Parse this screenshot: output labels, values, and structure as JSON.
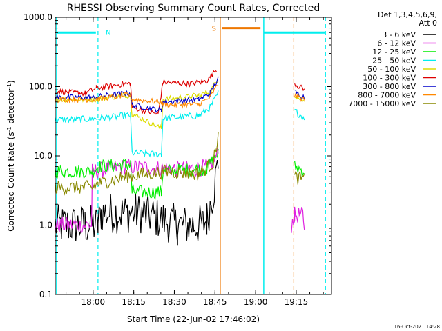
{
  "chart_data": {
    "type": "line",
    "title": "RHESSI Observing Summary Count Rates, Corrected",
    "xlabel": "Start Time (22-Jun-02 17:46:02)",
    "ylabel_main": "Corrected Count Rate (s",
    "ylabel_sup1": "-1",
    "ylabel_mid": " detector",
    "ylabel_sup2": "-1",
    "ylabel_end": ")",
    "y_scale": "log",
    "ylim": [
      0.1,
      1000
    ],
    "xlim": [
      17.767,
      19.467
    ],
    "yticks": [
      {
        "value": 0.1,
        "label": "0.1"
      },
      {
        "value": 1,
        "label": "1.0"
      },
      {
        "value": 10,
        "label": "10.0"
      },
      {
        "value": 100,
        "label": "100.0"
      },
      {
        "value": 1000,
        "label": "1000.0"
      }
    ],
    "xticks": [
      {
        "value": 18.0,
        "label": "18:00"
      },
      {
        "value": 18.25,
        "label": "18:15"
      },
      {
        "value": 18.5,
        "label": "18:30"
      },
      {
        "value": 18.75,
        "label": "18:45"
      },
      {
        "value": 19.0,
        "label": "19:00"
      },
      {
        "value": 19.25,
        "label": "19:15"
      }
    ],
    "legend": {
      "placement": "right-outside",
      "header1": "Det 1,3,4,5,6,9,",
      "header2": "Att 0",
      "entries": [
        {
          "label": "3 - 6 keV",
          "color": "#000000"
        },
        {
          "label": "6 - 12 keV",
          "color": "#e020e0"
        },
        {
          "label": "12 - 25 keV",
          "color": "#00ee00"
        },
        {
          "label": "25 - 50 keV",
          "color": "#00eeee"
        },
        {
          "label": "50 - 100 keV",
          "color": "#dddd00"
        },
        {
          "label": "100 - 300 keV",
          "color": "#dd0000"
        },
        {
          "label": "300 - 800 keV",
          "color": "#0000cc"
        },
        {
          "label": "800 - 7000 keV",
          "color": "#ff8800"
        },
        {
          "label": "7000 - 15000 keV",
          "color": "#888800"
        }
      ]
    },
    "annotations": {
      "night_label": "N",
      "saa_label": "S",
      "night_color": "#00eeee",
      "saa_color": "#ee7700",
      "night_bars": [
        [
          17.775,
          18.017
        ],
        [
          19.05,
          19.43
        ]
      ],
      "saa_bar": [
        18.795,
        19.03
      ],
      "night_bar_y": 600,
      "saa_bar_y": 700,
      "solid_lines": [
        {
          "x": 17.775,
          "color": "#00eeee"
        },
        {
          "x": 18.782,
          "color": "#ee7700"
        },
        {
          "x": 19.05,
          "color": "#00eeee"
        }
      ],
      "dashed_lines": [
        {
          "x": 18.03,
          "color": "#00eeee"
        },
        {
          "x": 19.235,
          "color": "#ee7700"
        },
        {
          "x": 19.43,
          "color": "#00eeee"
        }
      ]
    },
    "series": [
      {
        "name": "3 - 6 keV",
        "color": "#000000",
        "jitter": 0.3,
        "points": [
          [
            17.767,
            1
          ],
          [
            17.95,
            1
          ],
          [
            18.03,
            1
          ],
          [
            18.05,
            1.5
          ],
          [
            18.3,
            1.5
          ],
          [
            18.52,
            1
          ],
          [
            18.67,
            1
          ],
          [
            18.7,
            1.2
          ],
          [
            18.74,
            3
          ],
          [
            18.77,
            8
          ]
        ]
      },
      {
        "name": "6 - 12 keV",
        "color": "#e020e0",
        "jitter": 0.12,
        "points": [
          [
            17.767,
            1
          ],
          [
            17.99,
            1
          ],
          [
            17.995,
            6
          ],
          [
            18.2,
            7
          ],
          [
            18.45,
            6.5
          ],
          [
            18.6,
            6.5
          ],
          [
            18.72,
            7
          ],
          [
            18.77,
            11
          ],
          null,
          [
            19.22,
            1
          ],
          [
            19.24,
            1.4
          ],
          [
            19.29,
            1.4
          ],
          [
            19.3,
            1
          ]
        ]
      },
      {
        "name": "12 - 25 keV",
        "color": "#00ee00",
        "jitter": 0.1,
        "points": [
          [
            17.767,
            6
          ],
          [
            18.0,
            6
          ],
          [
            18.03,
            7
          ],
          [
            18.2,
            7.5
          ],
          [
            18.23,
            7.5
          ],
          [
            18.24,
            3
          ],
          [
            18.42,
            3
          ],
          [
            18.43,
            6
          ],
          [
            18.7,
            6.5
          ],
          [
            18.77,
            11
          ],
          null,
          [
            19.24,
            7
          ],
          [
            19.3,
            6
          ]
        ]
      },
      {
        "name": "25 - 50 keV",
        "color": "#00eeee",
        "jitter": 0.05,
        "points": [
          [
            17.767,
            33
          ],
          [
            18.0,
            34
          ],
          [
            18.2,
            38
          ],
          [
            18.23,
            38
          ],
          [
            18.24,
            11
          ],
          [
            18.42,
            10.5
          ],
          [
            18.43,
            35
          ],
          [
            18.65,
            38
          ],
          [
            18.72,
            50
          ],
          [
            18.77,
            80
          ],
          null,
          [
            19.24,
            45
          ],
          [
            19.3,
            35
          ]
        ]
      },
      {
        "name": "50 - 100 keV",
        "color": "#dddd00",
        "jitter": 0.04,
        "points": [
          [
            17.767,
            65
          ],
          [
            18.0,
            65
          ],
          [
            18.2,
            75
          ],
          [
            18.23,
            75
          ],
          [
            18.24,
            40
          ],
          [
            18.42,
            25
          ],
          [
            18.43,
            65
          ],
          [
            18.65,
            75
          ],
          [
            18.72,
            85
          ],
          [
            18.77,
            130
          ],
          null,
          [
            19.24,
            75
          ],
          [
            19.3,
            60
          ]
        ]
      },
      {
        "name": "100 - 300 keV",
        "color": "#dd0000",
        "jitter": 0.04,
        "points": [
          [
            17.767,
            85
          ],
          [
            17.95,
            80
          ],
          [
            18.02,
            95
          ],
          [
            18.2,
            110
          ],
          [
            18.23,
            110
          ],
          [
            18.24,
            50
          ],
          [
            18.4,
            40
          ],
          [
            18.43,
            115
          ],
          [
            18.6,
            110
          ],
          [
            18.7,
            120
          ],
          [
            18.76,
            180
          ],
          null,
          [
            19.24,
            110
          ],
          [
            19.3,
            90
          ]
        ]
      },
      {
        "name": "300 - 800 keV",
        "color": "#0000cc",
        "jitter": 0.04,
        "points": [
          [
            17.767,
            70
          ],
          [
            18.0,
            70
          ],
          [
            18.2,
            80
          ],
          [
            18.23,
            80
          ],
          [
            18.24,
            55
          ],
          [
            18.42,
            45
          ],
          [
            18.43,
            60
          ],
          [
            18.65,
            65
          ],
          [
            18.72,
            80
          ],
          [
            18.77,
            130
          ],
          null,
          [
            19.24,
            85
          ],
          [
            19.3,
            70
          ]
        ]
      },
      {
        "name": "800 - 7000 keV",
        "color": "#ff8800",
        "jitter": 0.04,
        "points": [
          [
            17.767,
            65
          ],
          [
            18.0,
            65
          ],
          [
            18.2,
            75
          ],
          [
            18.23,
            75
          ],
          [
            18.24,
            65
          ],
          [
            18.42,
            60
          ],
          [
            18.43,
            55
          ],
          [
            18.65,
            55
          ],
          [
            18.72,
            70
          ],
          [
            18.77,
            110
          ],
          null,
          [
            19.24,
            75
          ],
          [
            19.3,
            65
          ]
        ]
      },
      {
        "name": "7000 - 15000 keV",
        "color": "#888800",
        "jitter": 0.1,
        "points": [
          [
            17.767,
            3.5
          ],
          [
            18.0,
            3.5
          ],
          [
            18.03,
            4
          ],
          [
            18.2,
            5
          ],
          [
            18.45,
            6
          ],
          [
            18.65,
            5.5
          ],
          [
            18.74,
            8
          ],
          [
            18.77,
            20
          ],
          null,
          [
            19.24,
            5
          ],
          [
            19.3,
            4.5
          ]
        ]
      }
    ]
  },
  "footer": {
    "date_stamp": "16-Oct-2021 14:28"
  }
}
